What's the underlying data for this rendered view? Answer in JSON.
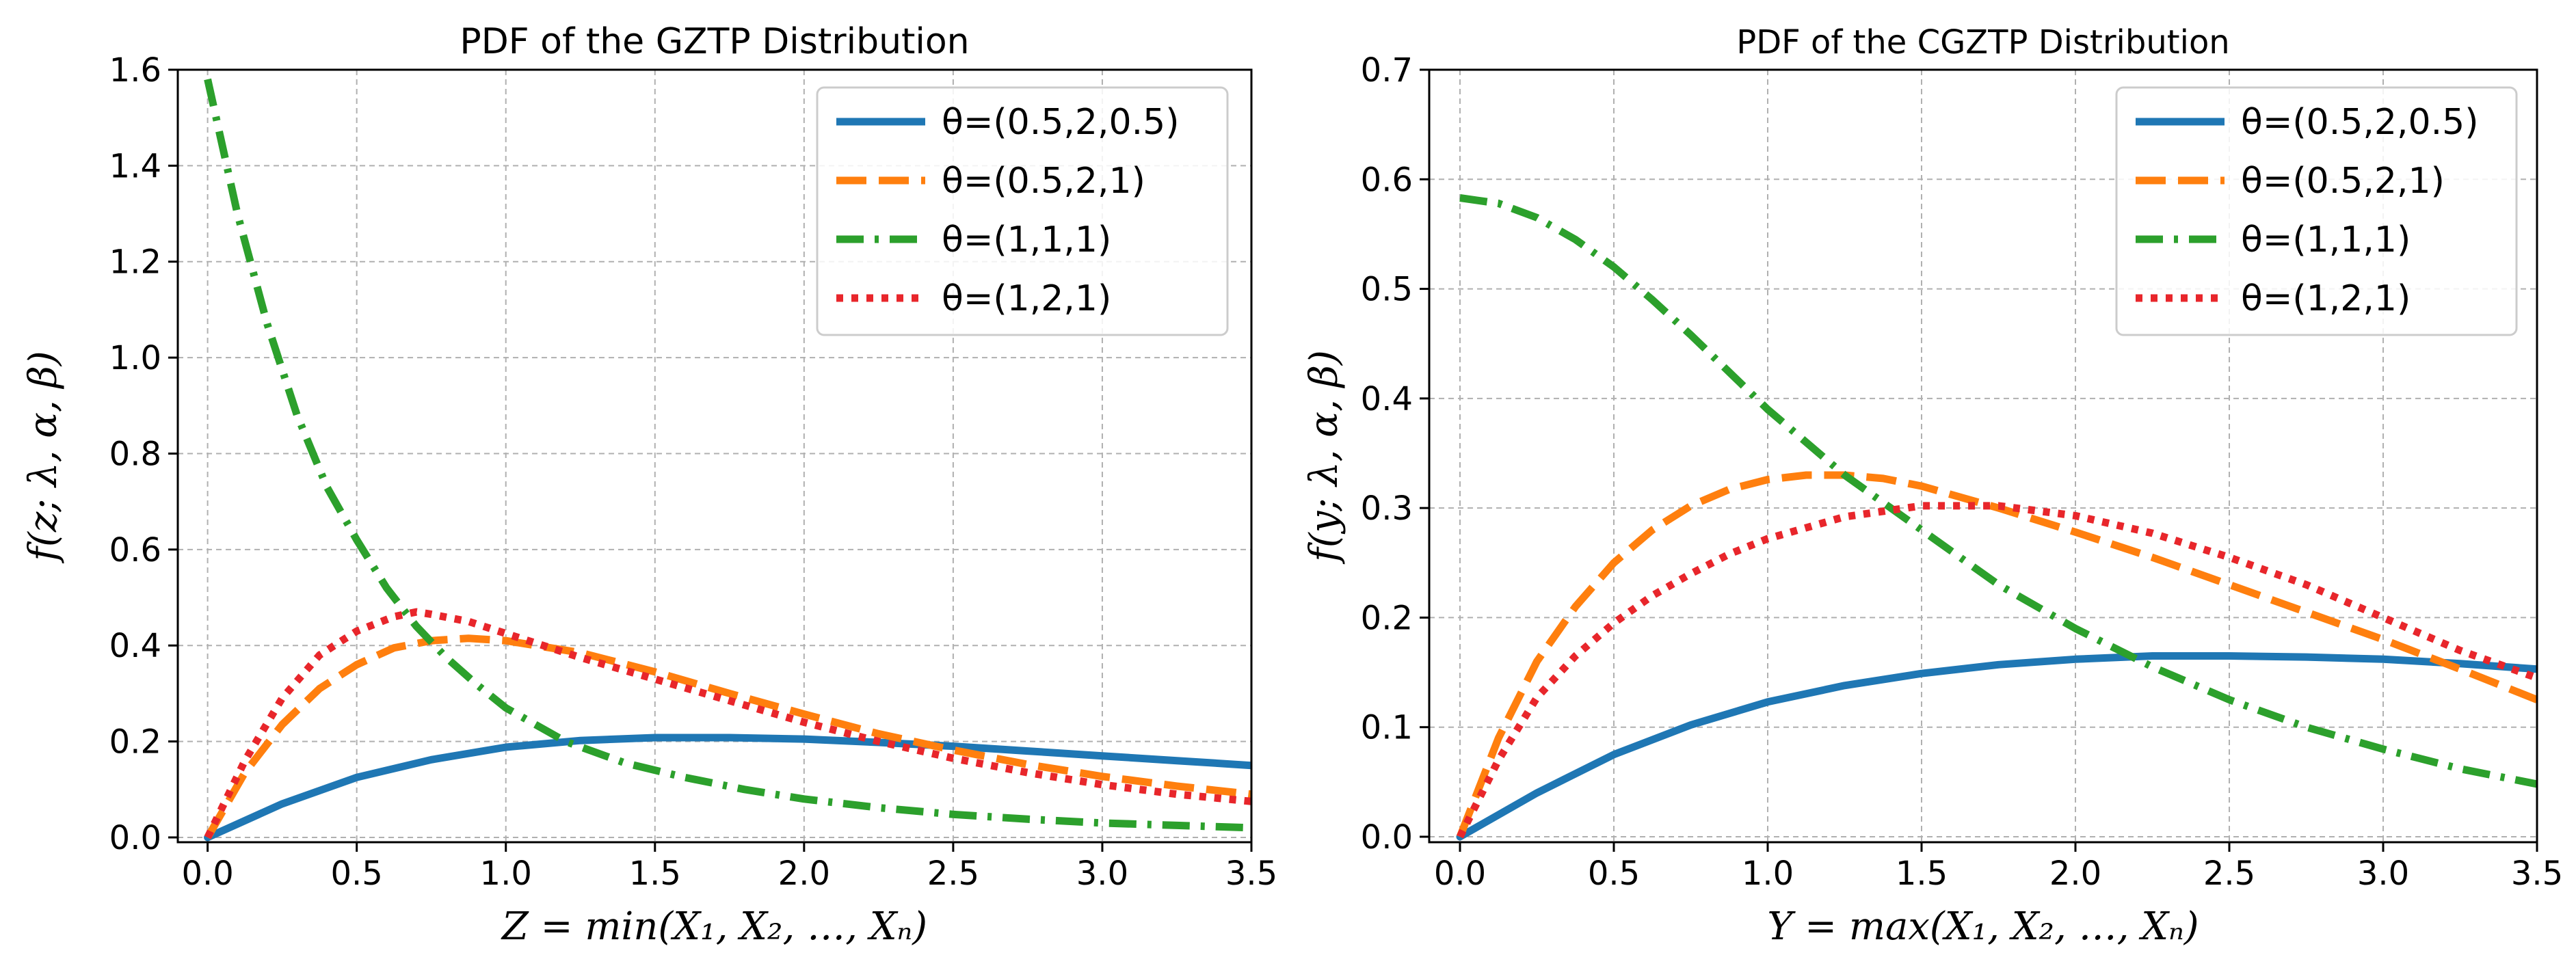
{
  "chart_data": [
    {
      "type": "line",
      "title": "PDF of the GZTP Distribution",
      "xlabel": "Z = min(X₁, X₂, …, Xₙ)",
      "ylabel": "f(z; λ, α, β)",
      "xlim": [
        -0.1,
        3.5
      ],
      "ylim": [
        -0.01,
        1.6
      ],
      "xticks": [
        "0.0",
        "0.5",
        "1.0",
        "1.5",
        "2.0",
        "2.5",
        "3.0",
        "3.5"
      ],
      "yticks": [
        "0.0",
        "0.2",
        "0.4",
        "0.6",
        "0.8",
        "1.0",
        "1.2",
        "1.4",
        "1.6"
      ],
      "grid": true,
      "legend_position": "top-right",
      "series": [
        {
          "name": "θ=(0.5,2,0.5)",
          "color": "#1f77b4",
          "style": "solid",
          "x": [
            0.0,
            0.25,
            0.5,
            0.75,
            1.0,
            1.25,
            1.5,
            1.75,
            2.0,
            2.25,
            2.5,
            2.75,
            3.0,
            3.25,
            3.5
          ],
          "y": [
            0.0,
            0.07,
            0.125,
            0.162,
            0.188,
            0.202,
            0.208,
            0.208,
            0.205,
            0.198,
            0.19,
            0.18,
            0.17,
            0.16,
            0.15
          ]
        },
        {
          "name": "θ=(0.5,2,1)",
          "color": "#ff7f0e",
          "style": "dashed",
          "x": [
            0.0,
            0.125,
            0.25,
            0.375,
            0.5,
            0.625,
            0.75,
            0.875,
            1.0,
            1.25,
            1.5,
            1.75,
            2.0,
            2.25,
            2.5,
            2.75,
            3.0,
            3.25,
            3.5
          ],
          "y": [
            0.0,
            0.135,
            0.235,
            0.31,
            0.36,
            0.395,
            0.41,
            0.415,
            0.41,
            0.385,
            0.345,
            0.3,
            0.257,
            0.216,
            0.182,
            0.152,
            0.127,
            0.107,
            0.09
          ]
        },
        {
          "name": "θ=(1,1,1)",
          "color": "#2ca02c",
          "style": "dashdot",
          "x": [
            0.0,
            0.1,
            0.2,
            0.3,
            0.4,
            0.5,
            0.6,
            0.7,
            0.8,
            0.9,
            1.0,
            1.2,
            1.4,
            1.6,
            1.8,
            2.0,
            2.25,
            2.5,
            2.75,
            3.0,
            3.25,
            3.5
          ],
          "y": [
            1.58,
            1.3,
            1.07,
            0.88,
            0.73,
            0.62,
            0.52,
            0.44,
            0.375,
            0.32,
            0.27,
            0.2,
            0.155,
            0.125,
            0.1,
            0.08,
            0.062,
            0.048,
            0.038,
            0.03,
            0.025,
            0.02
          ]
        },
        {
          "name": "θ=(1,2,1)",
          "color": "#e8262b",
          "style": "dotted",
          "x": [
            0.0,
            0.125,
            0.25,
            0.375,
            0.5,
            0.625,
            0.7,
            0.75,
            0.875,
            1.0,
            1.25,
            1.5,
            1.75,
            2.0,
            2.25,
            2.5,
            2.75,
            3.0,
            3.25,
            3.5
          ],
          "y": [
            0.0,
            0.16,
            0.29,
            0.38,
            0.43,
            0.46,
            0.47,
            0.465,
            0.45,
            0.425,
            0.375,
            0.33,
            0.285,
            0.24,
            0.2,
            0.165,
            0.135,
            0.11,
            0.09,
            0.075
          ]
        }
      ]
    },
    {
      "type": "line",
      "title": "PDF of the CGZTP Distribution",
      "xlabel": "Y = max(X₁, X₂, …, Xₙ)",
      "ylabel": "f(y; λ, α, β)",
      "xlim": [
        -0.1,
        3.5
      ],
      "ylim": [
        -0.005,
        0.7
      ],
      "xticks": [
        "0.0",
        "0.5",
        "1.0",
        "1.5",
        "2.0",
        "2.5",
        "3.0",
        "3.5"
      ],
      "yticks": [
        "0.0",
        "0.1",
        "0.2",
        "0.3",
        "0.4",
        "0.5",
        "0.6",
        "0.7"
      ],
      "grid": true,
      "legend_position": "top-right",
      "series": [
        {
          "name": "θ=(0.5,2,0.5)",
          "color": "#1f77b4",
          "style": "solid",
          "x": [
            0.0,
            0.25,
            0.5,
            0.75,
            1.0,
            1.25,
            1.5,
            1.75,
            2.0,
            2.25,
            2.5,
            2.75,
            3.0,
            3.25,
            3.5
          ],
          "y": [
            0.0,
            0.04,
            0.075,
            0.102,
            0.123,
            0.138,
            0.149,
            0.157,
            0.162,
            0.165,
            0.165,
            0.164,
            0.162,
            0.158,
            0.153
          ]
        },
        {
          "name": "θ=(0.5,2,1)",
          "color": "#ff7f0e",
          "style": "dashed",
          "x": [
            0.0,
            0.125,
            0.25,
            0.375,
            0.5,
            0.625,
            0.75,
            0.875,
            1.0,
            1.125,
            1.25,
            1.375,
            1.5,
            1.75,
            2.0,
            2.25,
            2.5,
            2.75,
            3.0,
            3.25,
            3.5
          ],
          "y": [
            0.0,
            0.09,
            0.16,
            0.21,
            0.25,
            0.28,
            0.302,
            0.317,
            0.326,
            0.33,
            0.33,
            0.327,
            0.32,
            0.3,
            0.278,
            0.255,
            0.23,
            0.205,
            0.18,
            0.153,
            0.125
          ]
        },
        {
          "name": "θ=(1,1,1)",
          "color": "#2ca02c",
          "style": "dashdot",
          "x": [
            0.0,
            0.125,
            0.25,
            0.375,
            0.5,
            0.625,
            0.75,
            0.875,
            1.0,
            1.25,
            1.5,
            1.75,
            2.0,
            2.25,
            2.5,
            2.75,
            3.0,
            3.25,
            3.5
          ],
          "y": [
            0.583,
            0.578,
            0.565,
            0.545,
            0.52,
            0.49,
            0.458,
            0.424,
            0.39,
            0.33,
            0.28,
            0.23,
            0.19,
            0.155,
            0.125,
            0.1,
            0.08,
            0.062,
            0.048
          ]
        },
        {
          "name": "θ=(1,2,1)",
          "color": "#e8262b",
          "style": "dotted",
          "x": [
            0.0,
            0.125,
            0.25,
            0.375,
            0.5,
            0.625,
            0.75,
            0.875,
            1.0,
            1.25,
            1.5,
            1.75,
            2.0,
            2.25,
            2.5,
            2.75,
            3.0,
            3.25,
            3.5
          ],
          "y": [
            0.0,
            0.07,
            0.127,
            0.165,
            0.195,
            0.22,
            0.24,
            0.258,
            0.272,
            0.292,
            0.302,
            0.302,
            0.293,
            0.277,
            0.255,
            0.23,
            0.2,
            0.17,
            0.145
          ]
        }
      ]
    }
  ]
}
